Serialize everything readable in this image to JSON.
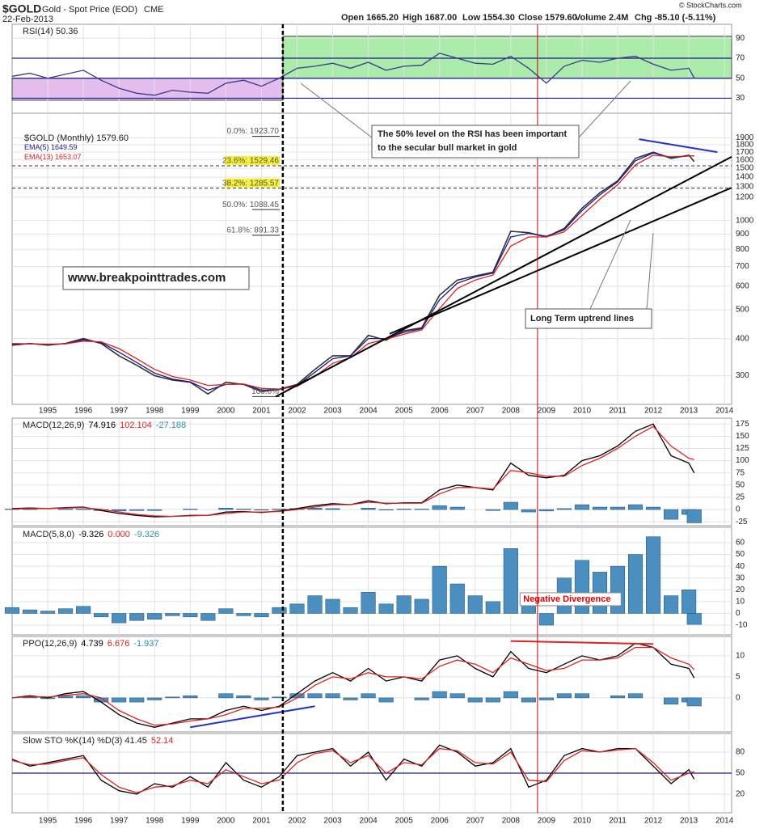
{
  "header": {
    "symbol": "$GOLD",
    "name": "Gold - Spot Price (EOD)",
    "exchange": "CME",
    "date": "22-Feb-2013",
    "open": "Open 1665.20",
    "high": "High 1687.00",
    "low": "Low 1554.30",
    "close": "Close 1579.60",
    "volume": "Volume 2.4M",
    "change": "Chg -85.10 (-5.11%)",
    "copyright": "© StockCharts.com"
  },
  "x_axis": {
    "xlim": [
      1994,
      2014.2
    ],
    "xticks": [
      1995,
      1996,
      1997,
      1998,
      1999,
      2000,
      2001,
      2002,
      2003,
      2004,
      2005,
      2006,
      2007,
      2008,
      2009,
      2010,
      2011,
      2012,
      2013,
      2014
    ]
  },
  "x": [
    1994,
    1994.5,
    1995,
    1995.5,
    1996,
    1996.5,
    1997,
    1997.5,
    1998,
    1998.5,
    1999,
    1999.5,
    2000,
    2000.5,
    2001,
    2001.5,
    2002,
    2002.5,
    2003,
    2003.5,
    2004,
    2004.5,
    2005,
    2005.5,
    2006,
    2006.5,
    2007,
    2007.5,
    2008,
    2008.5,
    2009,
    2009.5,
    2010,
    2010.5,
    2011,
    2011.5,
    2012,
    2012.5,
    2013,
    2013.15
  ],
  "vlines": [
    {
      "x": 2001.6,
      "color": "#000000",
      "dash": true
    },
    {
      "x": 2008.75,
      "color": "#cc0000",
      "dash": false
    }
  ],
  "chart_data": [
    {
      "type": "line",
      "ylim": [
        15,
        104
      ],
      "yticks": [
        90,
        70,
        50,
        30
      ],
      "hlines": [
        70,
        50,
        30
      ],
      "legend": [
        {
          "text": "RSI(14) 50.36",
          "color": "#222222"
        }
      ],
      "zones": [
        {
          "x": [
            1994,
            2001.6
          ],
          "y": [
            28,
            50
          ],
          "color": "#cc88dd"
        },
        {
          "x": [
            2001.6,
            2014.2
          ],
          "y": [
            50,
            92
          ],
          "color": "#66dd66"
        }
      ],
      "series": [
        {
          "style": "line",
          "color": "#3a3a8a",
          "values": [
            52,
            55,
            50,
            54,
            58,
            48,
            40,
            35,
            33,
            38,
            36,
            35,
            45,
            48,
            42,
            50,
            60,
            62,
            65,
            60,
            66,
            58,
            62,
            63,
            75,
            70,
            65,
            64,
            72,
            60,
            45,
            62,
            68,
            66,
            70,
            72,
            64,
            58,
            60,
            50.36
          ]
        }
      ]
    },
    {
      "type": "line",
      "log": true,
      "ylim": [
        240,
        2300
      ],
      "yticks": [
        1900,
        1800,
        1700,
        1600,
        1500,
        1400,
        1300,
        1200,
        1000,
        900,
        800,
        700,
        600,
        500,
        400,
        300
      ],
      "legend": [
        {
          "text": "$GOLD (Monthly) 1579.60",
          "color": "#222222"
        },
        {
          "text": "EMA(5) 1649.59",
          "color": "#1a1a8c"
        },
        {
          "text": "EMA(13) 1653.07",
          "color": "#dd2222"
        }
      ],
      "fib": [
        {
          "label": "0.0%: 1923.70",
          "value": 1923.7,
          "highlight": false
        },
        {
          "label": "23.6%: 1529.46",
          "value": 1529.46,
          "highlight": true
        },
        {
          "label": "38.2%: 1285.57",
          "value": 1285.57,
          "highlight": true
        },
        {
          "label": "50.0%: 1088.45",
          "value": 1088.45,
          "highlight": false
        },
        {
          "label": "61.8%: 891.33",
          "value": 891.33,
          "highlight": false
        },
        {
          "label": "100.0%",
          "value": 255,
          "highlight": false
        }
      ],
      "trendlines": [
        {
          "x": [
            2001.4,
            2014.2
          ],
          "y": [
            255,
            1640
          ],
          "color": "#000000"
        },
        {
          "x": [
            2004.6,
            2014.2
          ],
          "y": [
            415,
            1290
          ],
          "color": "#000000"
        },
        {
          "x": [
            2011.6,
            2013.8
          ],
          "y": [
            1880,
            1700
          ],
          "color": "#2233cc"
        }
      ],
      "series": [
        {
          "style": "line",
          "color": "#333333",
          "values": [
            380,
            385,
            380,
            385,
            400,
            385,
            350,
            325,
            300,
            290,
            285,
            260,
            285,
            280,
            265,
            270,
            280,
            315,
            350,
            350,
            410,
            395,
            425,
            435,
            560,
            630,
            650,
            670,
            920,
            910,
            880,
            940,
            1100,
            1240,
            1360,
            1620,
            1700,
            1620,
            1660,
            1579.6
          ]
        },
        {
          "style": "line",
          "color": "#1a1a8c",
          "values": [
            382,
            384,
            382,
            384,
            396,
            388,
            360,
            332,
            306,
            292,
            286,
            268,
            280,
            281,
            268,
            269,
            278,
            308,
            342,
            350,
            400,
            400,
            420,
            432,
            540,
            615,
            645,
            665,
            880,
            905,
            885,
            930,
            1080,
            1220,
            1350,
            1590,
            1690,
            1630,
            1650,
            1649.59
          ]
        },
        {
          "style": "line",
          "color": "#dd2222",
          "values": [
            385,
            384,
            383,
            384,
            392,
            390,
            370,
            342,
            315,
            298,
            290,
            278,
            280,
            281,
            272,
            270,
            276,
            298,
            330,
            345,
            385,
            398,
            414,
            428,
            505,
            590,
            630,
            655,
            820,
            880,
            880,
            915,
            1040,
            1180,
            1320,
            1540,
            1660,
            1640,
            1650,
            1653.07
          ]
        }
      ]
    },
    {
      "type": "line",
      "ylim": [
        -33,
        187
      ],
      "yticks": [
        175,
        150,
        125,
        100,
        75,
        50,
        25,
        0,
        -25
      ],
      "legend": [
        {
          "text": "MACD(12,26,9)",
          "color": "#222222"
        },
        {
          "text": "74.916",
          "color": "#000000"
        },
        {
          "text": "102.104",
          "color": "#dd2222"
        },
        {
          "text": "-27.188",
          "color": "#2a8faa"
        }
      ],
      "series": [
        {
          "style": "bar",
          "color": "#4a8fc0",
          "values": [
            1,
            1,
            0,
            1,
            1,
            -2,
            -3,
            -2,
            -2,
            0,
            1,
            0,
            3,
            1,
            -1,
            1,
            2,
            3,
            2,
            0,
            3,
            -1,
            1,
            1,
            8,
            5,
            0,
            -2,
            15,
            -5,
            -3,
            2,
            10,
            5,
            5,
            10,
            5,
            -20,
            -10,
            -27.188
          ]
        },
        {
          "style": "line",
          "color": "#000000",
          "values": [
            2,
            3,
            2,
            4,
            5,
            -2,
            -8,
            -12,
            -15,
            -14,
            -12,
            -12,
            -5,
            -4,
            -6,
            -3,
            2,
            8,
            12,
            10,
            18,
            12,
            14,
            14,
            40,
            50,
            45,
            40,
            95,
            70,
            65,
            70,
            100,
            110,
            130,
            160,
            175,
            110,
            95,
            74.916
          ]
        },
        {
          "style": "line",
          "color": "#dd2222",
          "values": [
            1,
            2,
            2,
            3,
            4,
            0,
            -5,
            -10,
            -13,
            -14,
            -13,
            -12,
            -8,
            -5,
            -5,
            -4,
            0,
            5,
            10,
            10,
            15,
            13,
            13,
            13,
            32,
            45,
            45,
            42,
            80,
            75,
            68,
            68,
            90,
            105,
            125,
            150,
            170,
            130,
            105,
            102.104
          ]
        }
      ]
    },
    {
      "type": "line",
      "ylim": [
        -18.2,
        73
      ],
      "yticks": [
        60,
        50,
        40,
        30,
        20,
        10,
        0,
        -10
      ],
      "legend": [
        {
          "text": "MACD(5,8,0)",
          "color": "#222222"
        },
        {
          "text": "-9.326",
          "color": "#000000"
        },
        {
          "text": "0.000",
          "color": "#dd2222"
        },
        {
          "text": "-9.326",
          "color": "#2a8faa"
        }
      ],
      "notes": [
        {
          "text": "Negative Divergence",
          "x": 2008.35,
          "y": 12,
          "color": "#dd0000"
        }
      ],
      "series": [
        {
          "style": "bar",
          "color": "#4a8fc0",
          "values": [
            5,
            3,
            2,
            4,
            6,
            -3,
            -8,
            -6,
            -5,
            -2,
            -3,
            -6,
            4,
            -2,
            -3,
            5,
            8,
            15,
            12,
            5,
            18,
            8,
            15,
            12,
            40,
            25,
            15,
            10,
            55,
            10,
            -10,
            30,
            45,
            35,
            40,
            50,
            65,
            15,
            20,
            -9.326
          ]
        }
      ]
    },
    {
      "type": "line",
      "ylim": [
        -8.1,
        14.6
      ],
      "yticks": [
        10,
        5,
        0
      ],
      "legend": [
        {
          "text": "PPO(12,26,9)",
          "color": "#222222"
        },
        {
          "text": "4.739",
          "color": "#000000"
        },
        {
          "text": "6.676",
          "color": "#dd2222"
        },
        {
          "text": "-1.937",
          "color": "#2a8faa"
        }
      ],
      "trendlines": [
        {
          "x": [
            2008,
            2012
          ],
          "y": [
            13.5,
            12.8
          ],
          "color": "#dd2222"
        },
        {
          "x": [
            1999,
            2002.5
          ],
          "y": [
            -7,
            -2
          ],
          "color": "#2233cc"
        }
      ],
      "series": [
        {
          "style": "bar",
          "color": "#4a8fc0",
          "values": [
            0,
            0.2,
            -0.2,
            0.4,
            0.5,
            -1,
            -1,
            -1,
            -0.5,
            0.2,
            0.5,
            0,
            1,
            0.5,
            -0.5,
            0.2,
            1,
            1,
            1,
            -0.5,
            1,
            -1,
            0,
            -0.5,
            1.5,
            1,
            -1,
            -1,
            1.5,
            -1,
            -0.5,
            1,
            1,
            0,
            0.5,
            1,
            0,
            -1.5,
            -1,
            -1.937
          ]
        },
        {
          "style": "line",
          "color": "#000000",
          "values": [
            0,
            0.5,
            0,
            1,
            1.5,
            -1,
            -4,
            -6,
            -7,
            -6,
            -5,
            -5,
            -3,
            -2,
            -3,
            -2,
            1,
            4,
            6,
            4,
            7,
            4,
            5,
            4,
            9,
            10,
            7,
            5,
            11,
            7,
            6,
            8,
            10,
            9,
            10,
            13,
            12,
            8,
            7,
            4.739
          ]
        },
        {
          "style": "line",
          "color": "#dd2222",
          "values": [
            0,
            0.3,
            0.2,
            0.6,
            1,
            0,
            -3,
            -5,
            -6.5,
            -6.2,
            -5.5,
            -5,
            -4,
            -2.5,
            -2.5,
            -2.2,
            0,
            3,
            5,
            4.5,
            6,
            5,
            5,
            4.5,
            7.5,
            9,
            8,
            6,
            9.5,
            8,
            6.5,
            7,
            9,
            9,
            9.5,
            12,
            12,
            9.5,
            8,
            6.676
          ]
        }
      ]
    },
    {
      "type": "line",
      "ylim": [
        -6.5,
        106.5
      ],
      "yticks": [
        80,
        50,
        20
      ],
      "hlines": [
        50
      ],
      "legend": [
        {
          "text": "Slow STO %K(14) %D(3) 41.45",
          "color": "#222222"
        },
        {
          "text": "52.14",
          "color": "#dd2222"
        }
      ],
      "series": [
        {
          "style": "line",
          "color": "#000000",
          "values": [
            70,
            60,
            65,
            70,
            75,
            40,
            25,
            20,
            35,
            30,
            45,
            30,
            65,
            40,
            30,
            45,
            75,
            80,
            85,
            60,
            80,
            40,
            70,
            60,
            90,
            80,
            60,
            65,
            85,
            30,
            40,
            75,
            85,
            80,
            85,
            85,
            60,
            35,
            55,
            41.45
          ]
        },
        {
          "style": "line",
          "color": "#dd2222",
          "values": [
            68,
            62,
            63,
            68,
            72,
            48,
            30,
            22,
            30,
            32,
            40,
            35,
            55,
            45,
            35,
            40,
            65,
            78,
            82,
            65,
            75,
            50,
            65,
            62,
            85,
            82,
            65,
            63,
            80,
            40,
            38,
            68,
            82,
            80,
            83,
            85,
            65,
            40,
            50,
            52.14
          ]
        }
      ]
    }
  ],
  "annotations": {
    "rsi_note": [
      "The 50% level on the RSI has been important",
      "to the secular bull market in gold"
    ],
    "website": "www.breakpointtrades.com",
    "uptrend": "Long Term uptrend lines"
  }
}
